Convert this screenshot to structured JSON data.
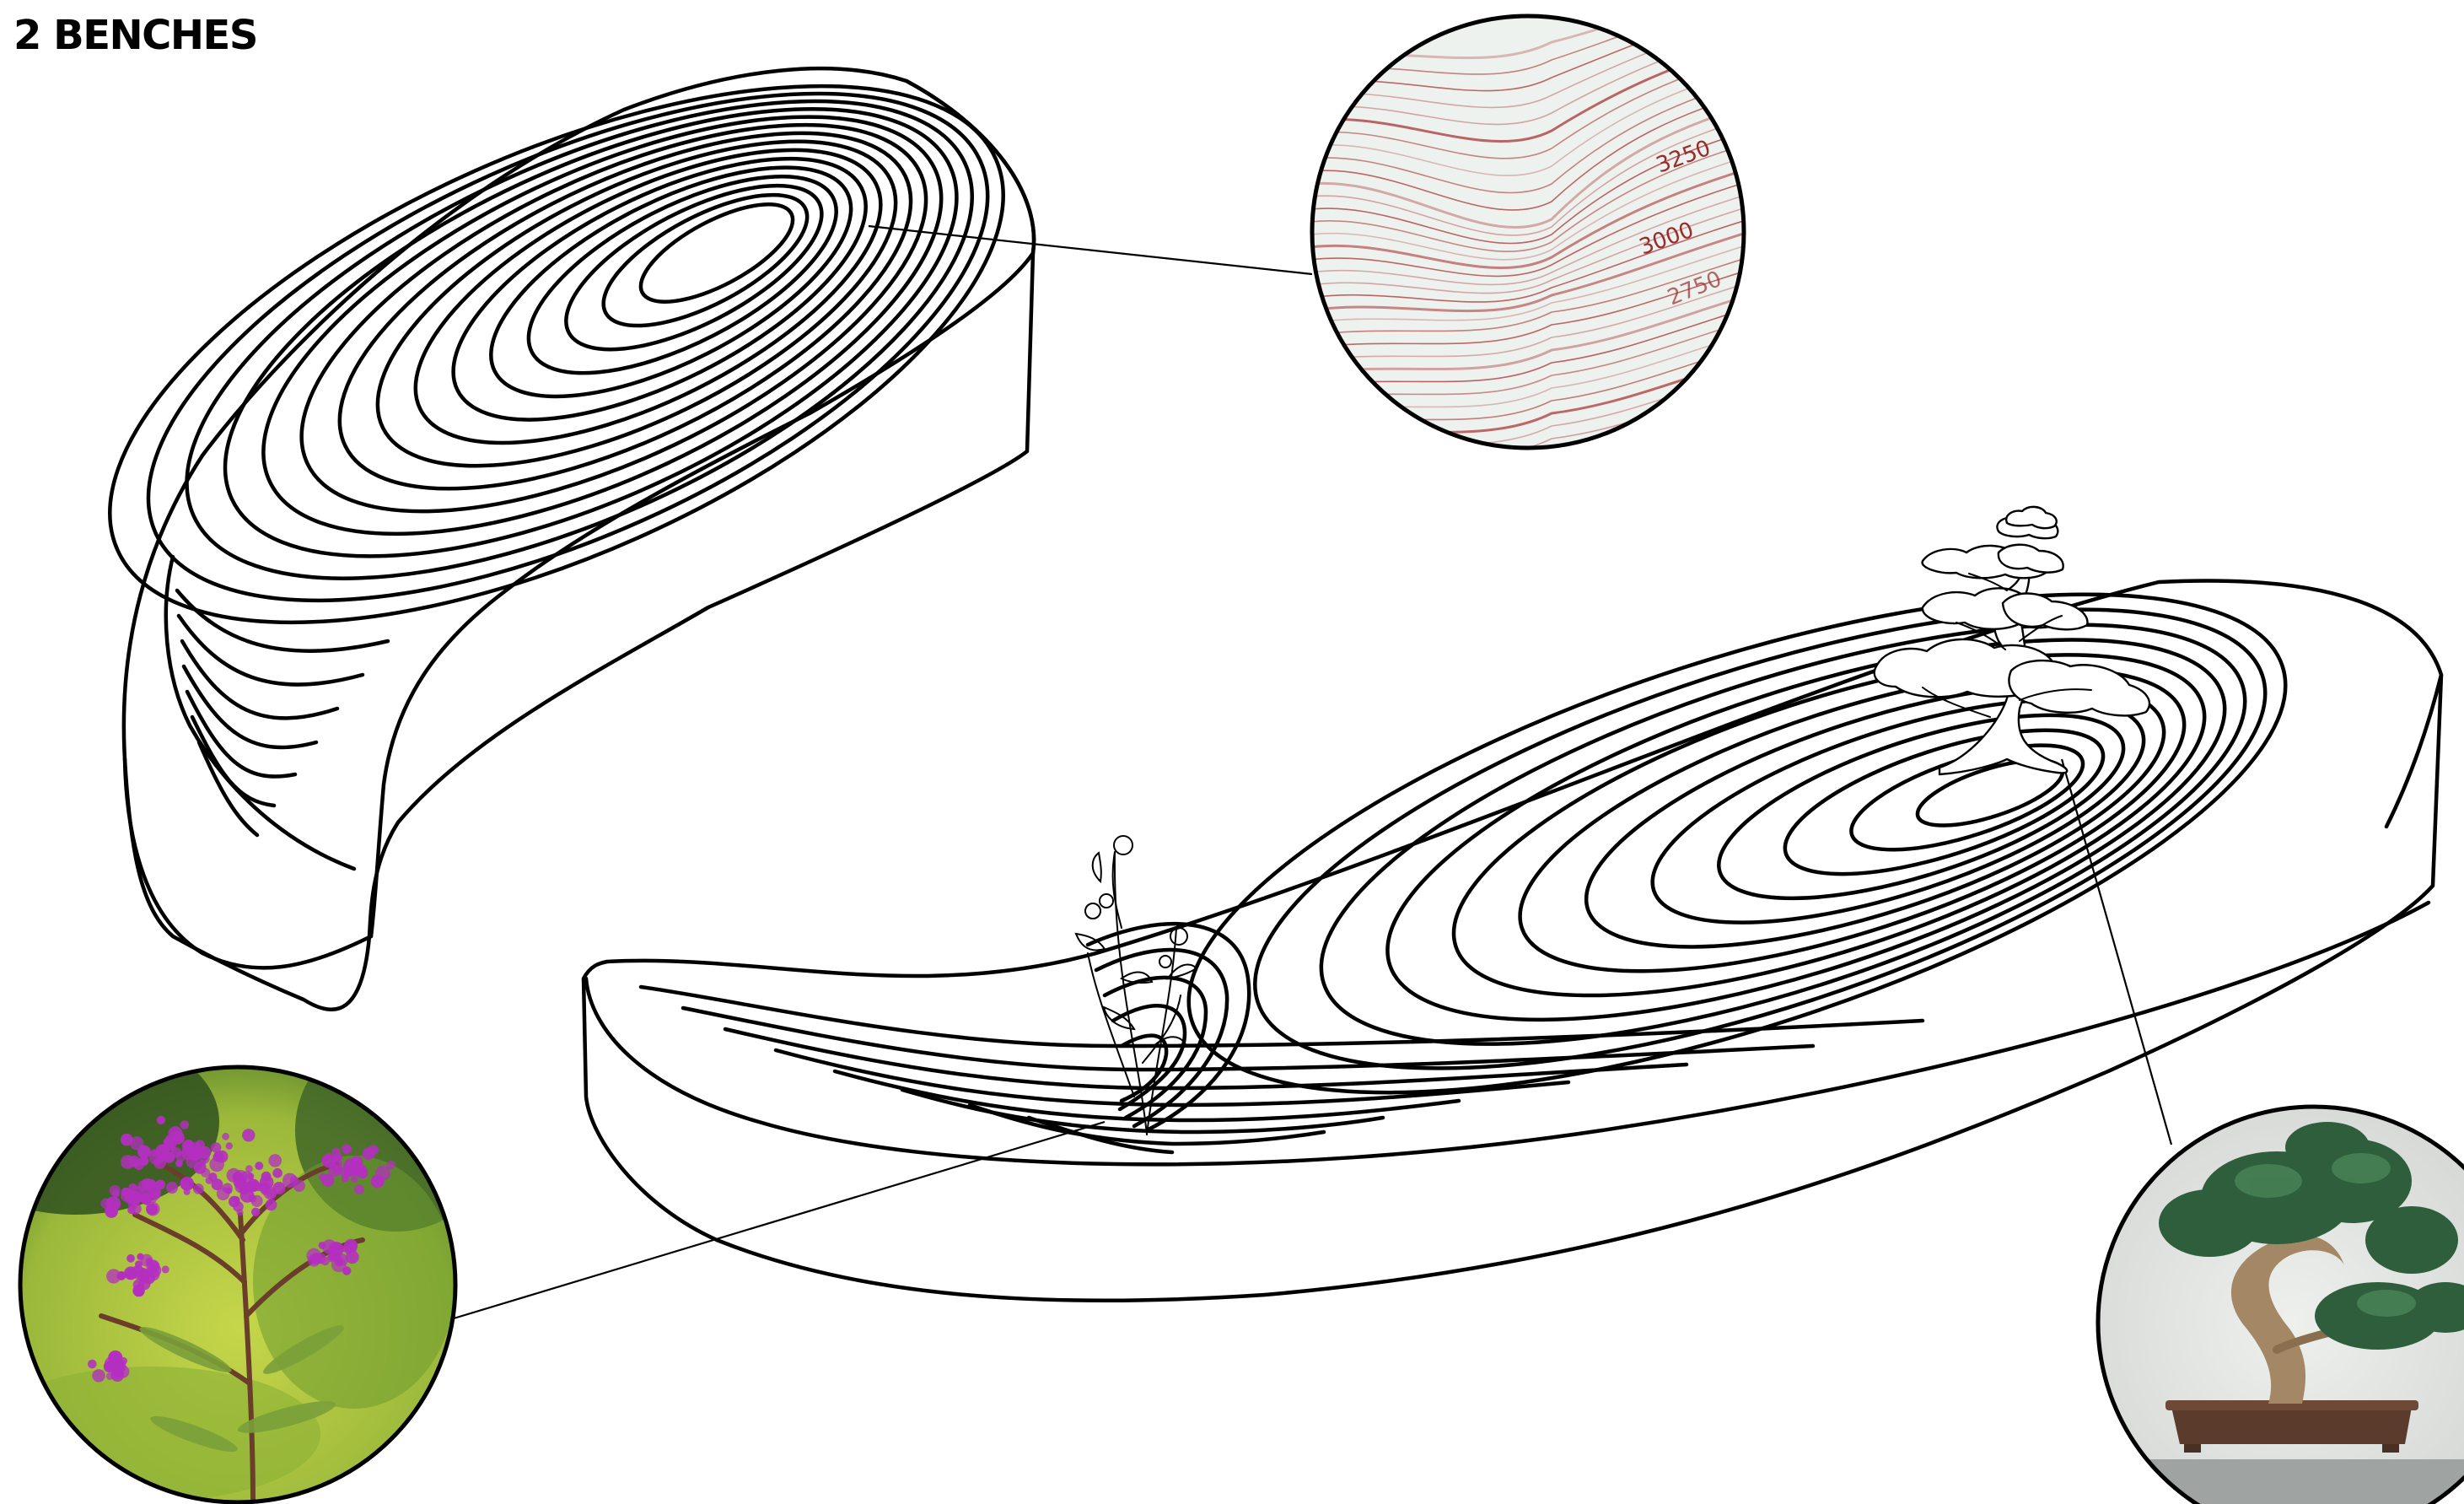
{
  "title": "2 BENCHES",
  "detail_images": {
    "contour_map": {
      "elevation_labels": [
        "3250",
        "3000",
        "2750"
      ],
      "line_color": "#b04848",
      "bg_color": "#eef2ef"
    },
    "ironweed_plant": {
      "flower_color": "#b42fc0",
      "foliage_color": "#a6c23a"
    },
    "bonsai_tree": {
      "foliage_color": "#2e5e3c",
      "pot_color": "#5a3b2c",
      "wall_color": "#e3e5e3"
    }
  },
  "icons": [
    "bonsai-tree-icon",
    "flower-sprig-icon"
  ]
}
